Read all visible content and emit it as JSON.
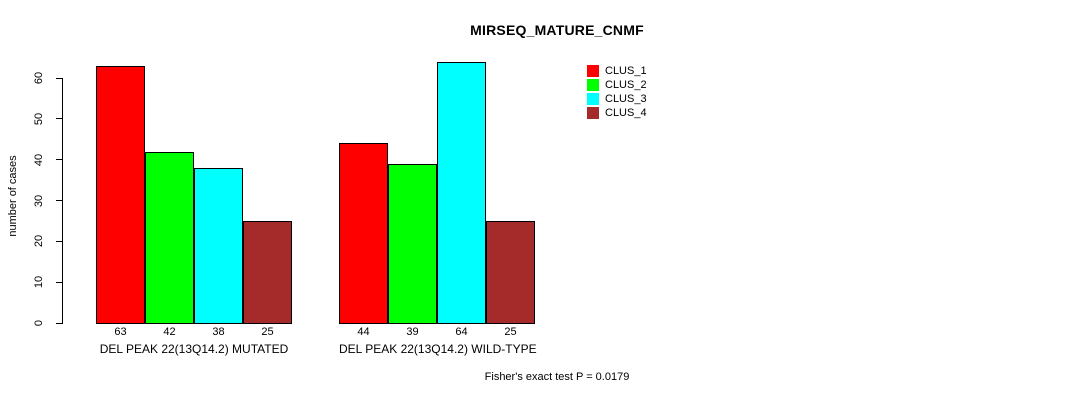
{
  "chart_data": {
    "type": "bar",
    "title": "MIRSEQ_MATURE_CNMF",
    "xlabel": "",
    "ylabel": "number of cases",
    "ylim": [
      0,
      65
    ],
    "yticks": [
      0,
      10,
      20,
      30,
      40,
      50,
      60
    ],
    "grid": false,
    "legend_position": "top-right",
    "bar_value_labels_shown": true,
    "categories": [
      "DEL PEAK 22(13Q14.2) MUTATED",
      "DEL PEAK 22(13Q14.2) WILD-TYPE"
    ],
    "series": [
      {
        "name": "CLUS_1",
        "color": "#FF0000",
        "values": [
          63,
          44
        ]
      },
      {
        "name": "CLUS_2",
        "color": "#00FF00",
        "values": [
          42,
          39
        ]
      },
      {
        "name": "CLUS_3",
        "color": "#00FFFF",
        "values": [
          38,
          64
        ]
      },
      {
        "name": "CLUS_4",
        "color": "#A52A2A",
        "values": [
          25,
          25
        ]
      }
    ],
    "annotation": "Fisher's exact test P = 0.0179"
  },
  "colors": {
    "axis": "#000000",
    "bar_border": "#000000",
    "background": "#FFFFFF"
  }
}
